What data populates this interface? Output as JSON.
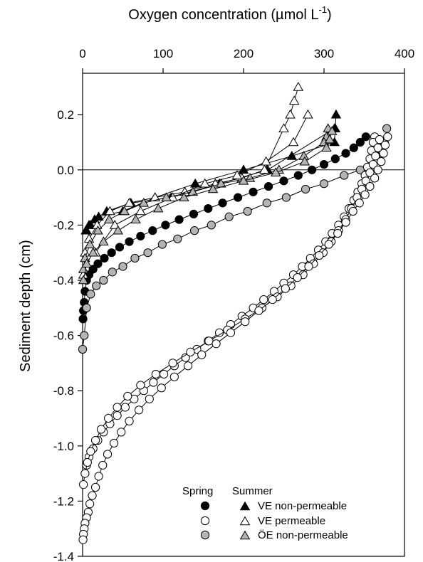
{
  "chart_data": {
    "type": "scatter",
    "title": "",
    "xlabel": "Oxygen concentration (µmol L",
    "xlabel_superscript": "-1",
    "xlabel_close": ")",
    "ylabel": "Sediment depth (cm)",
    "xlim": [
      0,
      400
    ],
    "ylim": [
      -1.4,
      0.35
    ],
    "x_axis_position": "top",
    "xticks": [
      0,
      100,
      200,
      300,
      400
    ],
    "xtick_labels": [
      "0",
      "100",
      "200",
      "300",
      "400"
    ],
    "yticks": [
      0.2,
      0.0,
      -0.2,
      -0.4,
      -0.6,
      -0.8,
      -1.0,
      -1.2,
      -1.4
    ],
    "ytick_labels": [
      "0.2",
      "0.0",
      "-0.2",
      "-0.4",
      "-0.6",
      "-0.8",
      "-1.0",
      "-1.2",
      "-1.4"
    ],
    "reference_line_y": 0,
    "grid": false,
    "legend": {
      "placement": "bottom-right",
      "header_spring": "Spring",
      "header_summer": "Summer",
      "entries": [
        {
          "label": "VE non-permeable",
          "spring": "filled-circle",
          "summer": "filled-triangle"
        },
        {
          "label": "VE permeable",
          "spring": "open-circle",
          "summer": "open-triangle"
        },
        {
          "label": "ÖE non-permeable",
          "spring": "gray-circle",
          "summer": "gray-triangle"
        }
      ]
    },
    "styles": {
      "black": "#000000",
      "white": "#ffffff",
      "gray": "#b4b4b4"
    },
    "series": [
      {
        "marker": "circle",
        "fill": "black",
        "profile": "spring-ve-nonperm",
        "x": [
          352,
          345,
          337,
          327,
          314,
          300,
          285,
          268,
          250,
          231,
          212,
          193,
          174,
          156,
          138,
          120,
          103,
          87,
          72,
          58,
          46,
          36,
          27,
          19,
          13,
          8,
          5,
          3,
          2,
          1,
          0.5
        ],
        "y": [
          0.12,
          0.1,
          0.08,
          0.06,
          0.04,
          0.02,
          0.0,
          -0.02,
          -0.04,
          -0.06,
          -0.08,
          -0.1,
          -0.12,
          -0.14,
          -0.16,
          -0.18,
          -0.2,
          -0.22,
          -0.24,
          -0.26,
          -0.28,
          -0.3,
          -0.32,
          -0.34,
          -0.36,
          -0.38,
          -0.4,
          -0.44,
          -0.48,
          -0.51,
          -0.54
        ]
      },
      {
        "marker": "circle",
        "fill": "gray",
        "profile": "spring-oe-nonperm",
        "x": [
          378,
          375,
          365,
          345,
          325,
          300,
          277,
          253,
          229,
          205,
          182,
          160,
          139,
          118,
          99,
          81,
          65,
          50,
          37,
          26,
          17,
          10,
          5,
          2,
          0
        ],
        "y": [
          0.15,
          0.1,
          0.05,
          0.0,
          -0.02,
          -0.05,
          -0.07,
          -0.1,
          -0.12,
          -0.15,
          -0.17,
          -0.2,
          -0.22,
          -0.25,
          -0.27,
          -0.3,
          -0.32,
          -0.35,
          -0.37,
          -0.4,
          -0.42,
          -0.45,
          -0.5,
          -0.6,
          -0.65
        ]
      },
      {
        "marker": "circle",
        "fill": "white",
        "profile": "spring-ve-perm-1",
        "x": [
          363,
          361,
          359,
          357,
          354,
          351,
          347,
          342,
          337,
          331,
          325,
          318,
          310,
          302,
          293,
          283,
          273,
          262,
          250,
          238,
          225,
          212,
          198,
          184,
          170,
          156,
          142,
          128,
          114,
          101,
          88,
          76,
          64,
          53,
          43,
          34,
          26,
          19,
          13,
          8,
          5
        ],
        "y": [
          0.12,
          0.1,
          0.07,
          0.04,
          0.01,
          -0.02,
          -0.05,
          -0.08,
          -0.11,
          -0.14,
          -0.17,
          -0.2,
          -0.23,
          -0.26,
          -0.29,
          -0.32,
          -0.35,
          -0.38,
          -0.41,
          -0.44,
          -0.47,
          -0.5,
          -0.53,
          -0.56,
          -0.59,
          -0.62,
          -0.65,
          -0.68,
          -0.71,
          -0.74,
          -0.77,
          -0.8,
          -0.83,
          -0.86,
          -0.89,
          -0.92,
          -0.95,
          -0.98,
          -1.01,
          -1.04,
          -1.07
        ]
      },
      {
        "marker": "circle",
        "fill": "white",
        "profile": "spring-ve-perm-2",
        "x": [
          369,
          367,
          364,
          361,
          357,
          352,
          347,
          341,
          334,
          327,
          318,
          309,
          299,
          287,
          274,
          259,
          242,
          223,
          202,
          180,
          157,
          134,
          112,
          91,
          72,
          56,
          43,
          32,
          23,
          16,
          10,
          6,
          3,
          1
        ],
        "y": [
          0.11,
          0.08,
          0.05,
          0.02,
          -0.01,
          -0.04,
          -0.07,
          -0.1,
          -0.14,
          -0.18,
          -0.22,
          -0.26,
          -0.3,
          -0.34,
          -0.38,
          -0.42,
          -0.46,
          -0.5,
          -0.54,
          -0.58,
          -0.62,
          -0.66,
          -0.7,
          -0.74,
          -0.78,
          -0.82,
          -0.86,
          -0.9,
          -0.94,
          -0.98,
          -1.02,
          -1.06,
          -1.1,
          -1.14
        ]
      },
      {
        "marker": "circle",
        "fill": "white",
        "profile": "spring-ve-perm-3",
        "x": [
          379,
          376,
          374,
          371,
          367,
          363,
          357,
          351,
          344,
          336,
          327,
          317,
          306,
          294,
          281,
          267,
          252,
          236,
          219,
          202,
          184,
          166,
          148,
          131,
          114,
          98,
          83,
          70,
          58,
          48,
          39,
          31,
          25,
          20,
          16,
          12,
          9,
          7,
          5,
          3,
          2,
          1,
          0.5
        ],
        "y": [
          0.12,
          0.09,
          0.06,
          0.03,
          0.0,
          -0.03,
          -0.06,
          -0.09,
          -0.12,
          -0.15,
          -0.19,
          -0.23,
          -0.27,
          -0.31,
          -0.35,
          -0.39,
          -0.43,
          -0.47,
          -0.51,
          -0.55,
          -0.59,
          -0.63,
          -0.67,
          -0.71,
          -0.75,
          -0.79,
          -0.83,
          -0.87,
          -0.91,
          -0.95,
          -0.99,
          -1.03,
          -1.07,
          -1.11,
          -1.15,
          -1.18,
          -1.21,
          -1.24,
          -1.26,
          -1.28,
          -1.3,
          -1.32,
          -1.34
        ]
      },
      {
        "marker": "triangle",
        "fill": "black",
        "profile": "summer-ve-nonperm-1",
        "x": [
          315,
          314,
          313,
          260,
          200,
          140,
          90,
          50,
          20,
          10,
          5
        ],
        "y": [
          0.2,
          0.15,
          0.1,
          0.05,
          0.0,
          -0.05,
          -0.1,
          -0.15,
          -0.17,
          -0.2,
          -0.22
        ]
      },
      {
        "marker": "triangle",
        "fill": "black",
        "profile": "summer-ve-nonperm-2",
        "x": [
          313,
          230,
          170,
          110,
          60,
          30,
          15,
          8,
          4
        ],
        "y": [
          0.15,
          0.0,
          -0.05,
          -0.1,
          -0.12,
          -0.15,
          -0.18,
          -0.2,
          -0.22
        ]
      },
      {
        "marker": "triangle",
        "fill": "white",
        "profile": "summer-ve-perm-1",
        "x": [
          268,
          263,
          258,
          250,
          226,
          198,
          165,
          127,
          90,
          58,
          34,
          18,
          8,
          3,
          1
        ],
        "y": [
          0.3,
          0.25,
          0.2,
          0.15,
          0.0,
          -0.03,
          -0.05,
          -0.08,
          -0.1,
          -0.12,
          -0.15,
          -0.2,
          -0.25,
          -0.3,
          -0.38
        ]
      },
      {
        "marker": "triangle",
        "fill": "white",
        "profile": "summer-ve-perm-2",
        "x": [
          280,
          262,
          228,
          192,
          152,
          112,
          72,
          40,
          16
        ],
        "y": [
          0.2,
          0.1,
          0.03,
          -0.02,
          -0.05,
          -0.1,
          -0.15,
          -0.2,
          -0.3
        ]
      },
      {
        "marker": "triangle",
        "fill": "gray",
        "profile": "summer-oe-nonperm-1",
        "x": [
          305,
          303,
          300,
          275,
          244,
          208,
          172,
          137,
          104,
          76,
          52,
          33,
          19,
          9,
          3,
          1
        ],
        "y": [
          0.15,
          0.12,
          0.1,
          0.05,
          0.0,
          -0.03,
          -0.05,
          -0.08,
          -0.1,
          -0.12,
          -0.15,
          -0.18,
          -0.22,
          -0.27,
          -0.32,
          -0.36
        ]
      },
      {
        "marker": "triangle",
        "fill": "gray",
        "profile": "summer-oe-nonperm-2",
        "x": [
          310,
          307,
          303,
          276,
          240,
          200,
          162,
          126,
          94,
          66,
          44,
          26,
          13,
          5,
          1
        ],
        "y": [
          0.14,
          0.11,
          0.08,
          0.03,
          -0.01,
          -0.04,
          -0.07,
          -0.1,
          -0.14,
          -0.18,
          -0.22,
          -0.26,
          -0.3,
          -0.34,
          -0.4
        ]
      }
    ]
  }
}
